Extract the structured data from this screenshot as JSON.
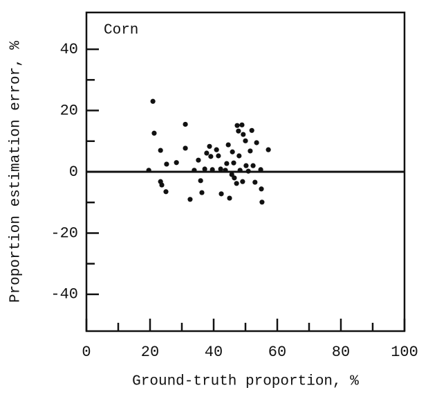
{
  "chart_data": {
    "type": "scatter",
    "annotation": "Corn",
    "xlabel": "Ground-truth proportion, %",
    "ylabel": "Proportion estimation error, %",
    "xlim": [
      0,
      100
    ],
    "ylim": [
      -52,
      52
    ],
    "xticks": [
      0,
      20,
      40,
      60,
      80,
      100
    ],
    "yticks": [
      -40,
      -20,
      0,
      20,
      40
    ],
    "xminor_ticks": [
      10,
      30,
      50,
      70,
      90
    ],
    "yminor_ticks": [
      -30,
      -10,
      10,
      30
    ],
    "zero_line": true,
    "color": "#111111",
    "x": [
      19.6,
      20.9,
      21.3,
      23.3,
      23.3,
      23.7,
      25.0,
      25.2,
      28.3,
      31.1,
      31.1,
      32.6,
      33.9,
      35.2,
      35.9,
      36.3,
      37.2,
      37.8,
      38.7,
      39.1,
      39.6,
      40.9,
      41.5,
      42.2,
      42.4,
      43.7,
      44.1,
      44.6,
      45.0,
      45.7,
      45.9,
      46.3,
      46.5,
      47.2,
      47.4,
      47.8,
      48.0,
      48.3,
      48.9,
      49.1,
      49.3,
      50.0,
      50.2,
      50.9,
      51.5,
      52.0,
      52.4,
      53.0,
      53.5,
      54.8,
      55.0,
      55.2,
      57.2
    ],
    "values": [
      0.5,
      23.0,
      12.6,
      7.0,
      -3.2,
      -4.3,
      -6.5,
      2.5,
      3.0,
      15.5,
      7.7,
      -9.0,
      0.5,
      3.8,
      -2.9,
      -6.8,
      0.9,
      6.1,
      8.3,
      5.0,
      0.7,
      7.2,
      5.2,
      0.9,
      -7.2,
      0.5,
      2.7,
      8.8,
      -8.6,
      -0.9,
      6.5,
      2.9,
      -2.0,
      -3.8,
      15.1,
      13.3,
      5.2,
      0.5,
      15.3,
      -3.2,
      12.2,
      10.1,
      2.0,
      0.2,
      6.8,
      13.5,
      2.0,
      -3.4,
      9.5,
      0.7,
      -5.6,
      -9.9,
      7.2
    ]
  }
}
